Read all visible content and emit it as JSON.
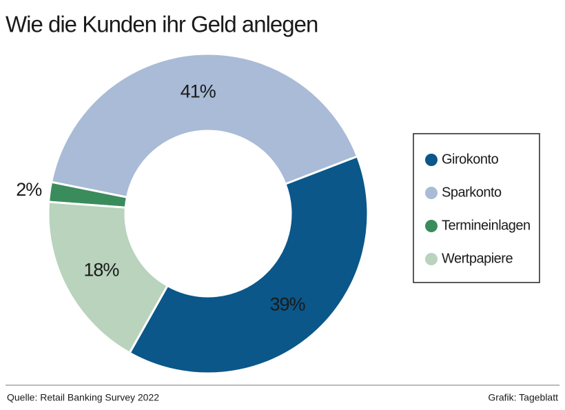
{
  "chart_data": {
    "type": "donut",
    "title": "Wie die Kunden ihr Geld anlegen",
    "categories": [
      "Girokonto",
      "Sparkonto",
      "Termineinlagen",
      "Wertpapiere"
    ],
    "values": [
      39,
      41,
      2,
      18
    ],
    "value_labels": [
      "39%",
      "41%",
      "2%",
      "18%"
    ],
    "colors": [
      "#0b5789",
      "#a9bbd6",
      "#3b8c5c",
      "#b9d3bc"
    ],
    "legend": "right",
    "source": "Quelle: Retail Banking Survey 2022",
    "credit": "Grafik: Tageblatt"
  }
}
